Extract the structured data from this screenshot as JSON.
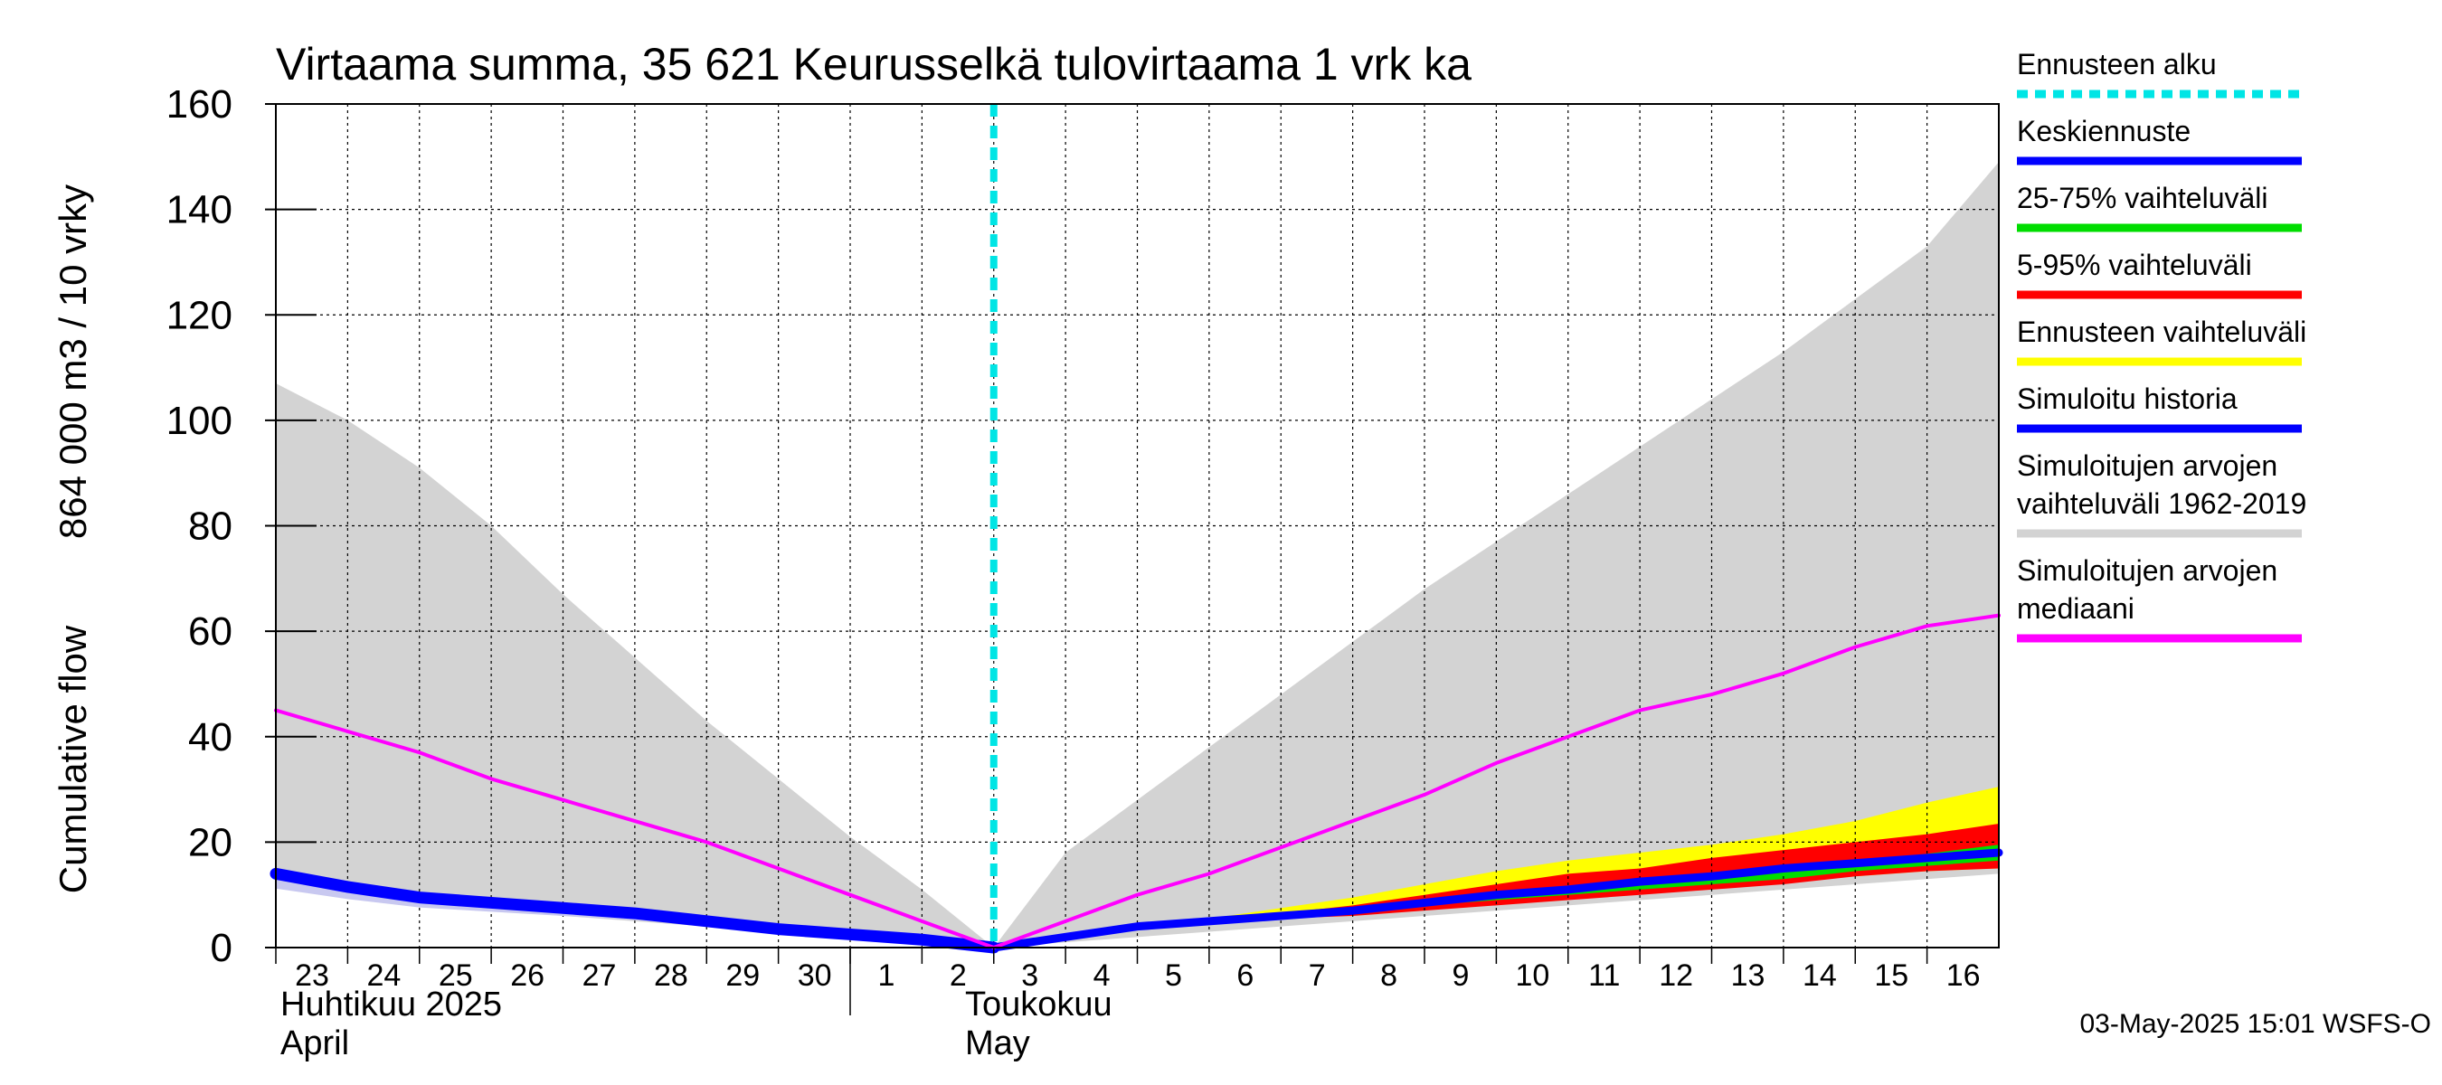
{
  "chart_data": {
    "type": "area",
    "title": "Virtaama summa, 35 621 Keurusselkä tulovirtaama 1 vrk ka",
    "ylabel_fi": "864 000 m3 / 10 vrky",
    "ylabel_en": "Cumulative flow",
    "ylim": [
      0,
      160
    ],
    "yticks": [
      0,
      20,
      40,
      60,
      80,
      100,
      120,
      140,
      160
    ],
    "xlim": [
      0,
      24
    ],
    "grid": true,
    "x_tick_labels": [
      "23",
      "24",
      "25",
      "26",
      "27",
      "28",
      "29",
      "30",
      "1",
      "2",
      "3",
      "4",
      "5",
      "6",
      "7",
      "8",
      "9",
      "10",
      "11",
      "12",
      "13",
      "14",
      "15",
      "16"
    ],
    "month_labels": [
      {
        "fi": "Huhtikuu  2025",
        "en": "April"
      },
      {
        "fi": "Toukokuu",
        "en": "May"
      }
    ],
    "forecast_start_x": 10,
    "series": [
      {
        "name": "Simuloitujen arvojen vaihteluväli 1962-2019",
        "kind": "band",
        "x": [
          0,
          1,
          2,
          3,
          4,
          5,
          6,
          7,
          8,
          9,
          10,
          11,
          12,
          13,
          14,
          15,
          16,
          17,
          18,
          19,
          20,
          21,
          22,
          23,
          24
        ],
        "lower": [
          13,
          10,
          8,
          7,
          6,
          5,
          4,
          3,
          2,
          1,
          0,
          1,
          2,
          3,
          4,
          5,
          6,
          7,
          8,
          9,
          10,
          11,
          12,
          13,
          14
        ],
        "upper": [
          107,
          100,
          91,
          80,
          67,
          55,
          43,
          32,
          21,
          11,
          0,
          18,
          28,
          38,
          48,
          58,
          68,
          77,
          86,
          95,
          104,
          113,
          123,
          133,
          149
        ]
      },
      {
        "name": "Ennusteen vaihteluväli",
        "kind": "band",
        "x": [
          12,
          13,
          14,
          15,
          16,
          17,
          18,
          19,
          20,
          21,
          22,
          23,
          24
        ],
        "lower": [
          4,
          4.5,
          5.5,
          6.5,
          7.5,
          8.5,
          9.5,
          10.5,
          11.5,
          12.5,
          13.5,
          14.5,
          15
        ],
        "upper": [
          4,
          5.5,
          7.5,
          9.5,
          12,
          14.5,
          16.5,
          18,
          19.5,
          21.5,
          24,
          27.5,
          30.5
        ]
      },
      {
        "name": "5-95% vaihteluväli",
        "kind": "band",
        "x": [
          12,
          13,
          14,
          15,
          16,
          17,
          18,
          19,
          20,
          21,
          22,
          23,
          24
        ],
        "lower": [
          3.5,
          4.5,
          5.5,
          6,
          7,
          8,
          9,
          10,
          11,
          12,
          13.5,
          14.5,
          15
        ],
        "upper": [
          4,
          5,
          6.5,
          8,
          10,
          12,
          14,
          15,
          17,
          18.5,
          20,
          21.5,
          23.5
        ]
      },
      {
        "name": "25-75% vaihteluväli",
        "kind": "band",
        "x": [
          12,
          13,
          14,
          15,
          16,
          17,
          18,
          19,
          20,
          21,
          22,
          23,
          24
        ],
        "lower": [
          4,
          4.8,
          5.8,
          6.8,
          8,
          9,
          10,
          11,
          12,
          13,
          14.5,
          15.5,
          16.5
        ],
        "upper": [
          4,
          5,
          6.3,
          7.5,
          8.5,
          9.8,
          11,
          12.3,
          13.5,
          14.8,
          16.2,
          17.8,
          19.5
        ]
      },
      {
        "name": "Simuloitujen arvojen mediaani",
        "kind": "line",
        "x": [
          0,
          1,
          2,
          3,
          4,
          5,
          6,
          7,
          8,
          9,
          10,
          11,
          12,
          13,
          14,
          15,
          16,
          17,
          18,
          19,
          20,
          21,
          22,
          23,
          24
        ],
        "values": [
          45,
          41,
          37,
          32,
          28,
          24,
          20,
          15,
          10,
          5,
          0,
          5,
          10,
          14,
          19,
          24,
          29,
          35,
          40,
          45,
          48,
          52,
          57,
          61,
          63
        ]
      },
      {
        "name": "Simuloitu historia",
        "kind": "line",
        "x": [
          0,
          1,
          2,
          3,
          4,
          5,
          6,
          7,
          8,
          9,
          10
        ],
        "values": [
          14,
          11.5,
          9.5,
          8.5,
          7.5,
          6.5,
          5,
          3.5,
          2.5,
          1.5,
          0
        ]
      },
      {
        "name": "Keskiennuste",
        "kind": "line",
        "x": [
          10,
          11,
          12,
          13,
          14,
          15,
          16,
          17,
          18,
          19,
          20,
          21,
          22,
          23,
          24
        ],
        "values": [
          0,
          2,
          4,
          5,
          6,
          7,
          8.5,
          10,
          11,
          12.5,
          13.5,
          15,
          16,
          17,
          18
        ]
      }
    ],
    "legend": [
      {
        "label": "Ennusteen alku",
        "color": "#00e5e5",
        "style": "dashed"
      },
      {
        "label": "Keskiennuste",
        "color": "#0000ff",
        "style": "solid"
      },
      {
        "label": "25-75% vaihteluväli",
        "color": "#00dd00",
        "style": "solid"
      },
      {
        "label": "5-95% vaihteluväli",
        "color": "#ff0000",
        "style": "solid"
      },
      {
        "label": "Ennusteen vaihteluväli",
        "color": "#ffff00",
        "style": "solid"
      },
      {
        "label": "Simuloitu historia",
        "color": "#0000ff",
        "style": "solid"
      },
      {
        "label": "Simuloitujen arvojen\nvaihteluväli 1962-2019",
        "color": "#d3d3d3",
        "style": "solid"
      },
      {
        "label": "Simuloitujen arvojen\nmediaani",
        "color": "#ff00ff",
        "style": "solid"
      }
    ],
    "legend_position": "right",
    "timestamp": "03-May-2025 15:01 WSFS-O"
  },
  "colors": {
    "range_band": "#d3d3d3",
    "forecast_range": "#ffff00",
    "p5_95": "#ff0000",
    "p25_75": "#00dd00",
    "mean": "#0000ff",
    "history": "#0000ff",
    "history_band": "#c8c8f0",
    "median": "#ff00ff",
    "forecast_start": "#00e5e5"
  }
}
